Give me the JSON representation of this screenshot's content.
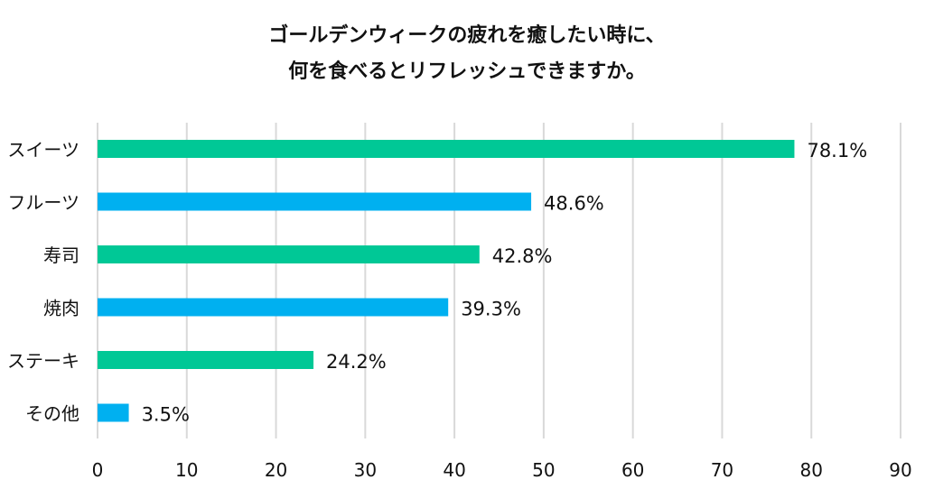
{
  "chart_data": {
    "type": "bar",
    "orientation": "horizontal",
    "title_lines": [
      "ゴールデンウィークの疲れを癒したい時に、",
      "何を食べるとリフレッシュできますか。"
    ],
    "categories": [
      "スイーツ",
      "フルーツ",
      "寿司",
      "焼肉",
      "ステーキ",
      "その他"
    ],
    "values": [
      78.1,
      48.6,
      42.8,
      39.3,
      24.2,
      3.5
    ],
    "value_labels": [
      "78.1%",
      "48.6%",
      "42.8%",
      "39.3%",
      "24.2%",
      "3.5%"
    ],
    "bar_colors": [
      "#00c896",
      "#00b0f0",
      "#00c896",
      "#00b0f0",
      "#00c896",
      "#00b0f0"
    ],
    "xlim": [
      0,
      90
    ],
    "xticks": [
      0,
      10,
      20,
      30,
      40,
      50,
      60,
      70,
      80,
      90
    ],
    "grid": true,
    "grid_color": "#d9d9d9",
    "xlabel": "",
    "ylabel": ""
  }
}
